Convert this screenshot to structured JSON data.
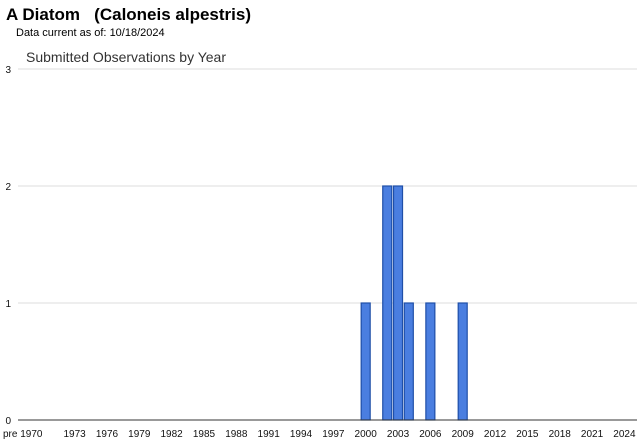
{
  "header": {
    "common_name": "A Diatom",
    "scientific_name": "(Caloneis alpestris)",
    "data_current_label": "Data current as of:",
    "data_current_date": "10/18/2024"
  },
  "chart_data": {
    "type": "bar",
    "title": "Submitted Observations by Year",
    "xlabel": "",
    "ylabel": "",
    "ylim": [
      0,
      3
    ],
    "y_ticks": [
      0,
      1,
      2,
      3
    ],
    "grid": true,
    "legend": "none",
    "bar_color": "#4a7ee0",
    "bar_edge_color": "#1f4fa8",
    "x_tick_labels": [
      "pre 1970",
      "1973",
      "1976",
      "1979",
      "1982",
      "1985",
      "1988",
      "1991",
      "1994",
      "1997",
      "2000",
      "2003",
      "2006",
      "2009",
      "2012",
      "2015",
      "2018",
      "2021",
      "2024"
    ],
    "categories": [
      "pre 1970",
      "1970",
      "1971",
      "1972",
      "1973",
      "1974",
      "1975",
      "1976",
      "1977",
      "1978",
      "1979",
      "1980",
      "1981",
      "1982",
      "1983",
      "1984",
      "1985",
      "1986",
      "1987",
      "1988",
      "1989",
      "1990",
      "1991",
      "1992",
      "1993",
      "1994",
      "1995",
      "1996",
      "1997",
      "1998",
      "1999",
      "2000",
      "2001",
      "2002",
      "2003",
      "2004",
      "2005",
      "2006",
      "2007",
      "2008",
      "2009",
      "2010",
      "2011",
      "2012",
      "2013",
      "2014",
      "2015",
      "2016",
      "2017",
      "2018",
      "2019",
      "2020",
      "2021",
      "2022",
      "2023",
      "2024"
    ],
    "values": [
      0,
      0,
      0,
      0,
      0,
      0,
      0,
      0,
      0,
      0,
      0,
      0,
      0,
      0,
      0,
      0,
      0,
      0,
      0,
      0,
      0,
      0,
      0,
      0,
      0,
      0,
      0,
      0,
      0,
      0,
      0,
      1,
      0,
      2,
      2,
      1,
      0,
      1,
      0,
      0,
      1,
      0,
      0,
      0,
      0,
      0,
      0,
      0,
      0,
      0,
      0,
      0,
      0,
      0,
      0,
      0
    ]
  }
}
